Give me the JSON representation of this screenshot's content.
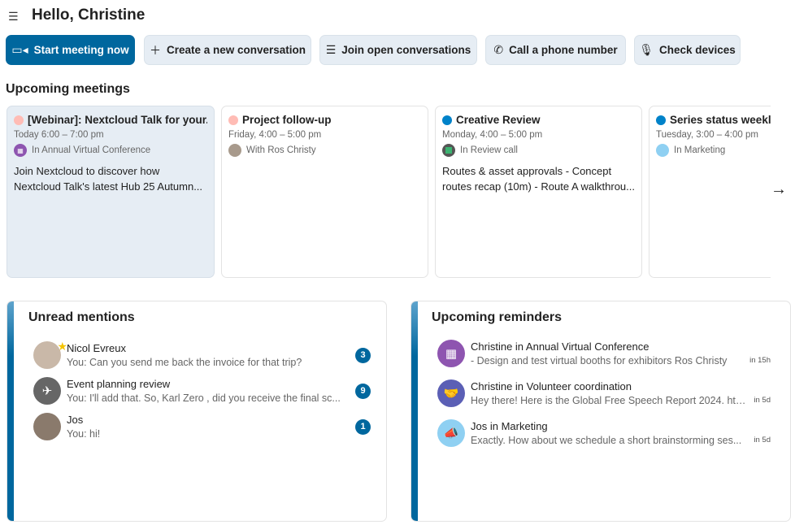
{
  "header": {
    "title": "Hello, Christine",
    "menu_icon": "sidebar-toggle-icon"
  },
  "actions": [
    {
      "label": "Start meeting now",
      "icon": "video-icon",
      "primary": true
    },
    {
      "label": "Create a new conversation",
      "icon": "plus-icon"
    },
    {
      "label": "Join open conversations",
      "icon": "list-icon"
    },
    {
      "label": "Call a phone number",
      "icon": "phone-icon"
    },
    {
      "label": "Check devices",
      "icon": "microphone-icon"
    }
  ],
  "upcoming": {
    "title": "Upcoming meetings",
    "meetings": [
      {
        "title": "[Webinar]: Nextcloud Talk for your...",
        "time": "Today 6:00 – 7:00 pm",
        "location": "In Annual Virtual Conference",
        "description": "Join Nextcloud to discover how Nextcloud Talk's latest Hub 25 Autumn...",
        "color": "#ffbcb5"
      },
      {
        "title": "Project follow-up",
        "time": "Friday, 4:00 – 5:00 pm",
        "location": "With Ros Christy",
        "description": "",
        "color": "#ffbcb5"
      },
      {
        "title": "Creative Review",
        "time": "Monday, 4:00 – 5:00 pm",
        "location": "In Review call",
        "description": "Routes & asset approvals - Concept routes recap (10m) - Route A walkthrou...",
        "color": "#0082c9"
      },
      {
        "title": "Series status weekly",
        "time": "Tuesday, 3:00 – 4:00 pm",
        "location": "In Marketing",
        "description": "",
        "color": "#0082c9"
      }
    ],
    "next_icon": "arrow-right-icon"
  },
  "mentions": {
    "title": "Unread mentions",
    "items": [
      {
        "name": "Nicol Evreux",
        "message": "You: Can you send me back the invoice for that trip?",
        "count": "3",
        "favorite": true
      },
      {
        "name": "Event planning review",
        "message": "You: I'll add that. So, Karl Zero , did you receive the final sc...",
        "count": "9"
      },
      {
        "name": "Jos",
        "message": "You: hi!",
        "count": "1"
      }
    ]
  },
  "reminders": {
    "title": "Upcoming reminders",
    "items": [
      {
        "title": "Christine in Annual Virtual Conference",
        "message": "- Design and test virtual booths for exhibitors Ros Christy",
        "due": "in 15h"
      },
      {
        "title": "Christine in Volunteer coordination",
        "message": "Hey there! Here is the Global Free Speech Report 2024. htt...",
        "due": "in 5d"
      },
      {
        "title": "Jos in Marketing",
        "message": "Exactly. How about we schedule a short brainstorming ses...",
        "due": "in 5d"
      }
    ]
  },
  "colors": {
    "primary": "#00679e",
    "secondary_bg": "#e6edf4"
  }
}
